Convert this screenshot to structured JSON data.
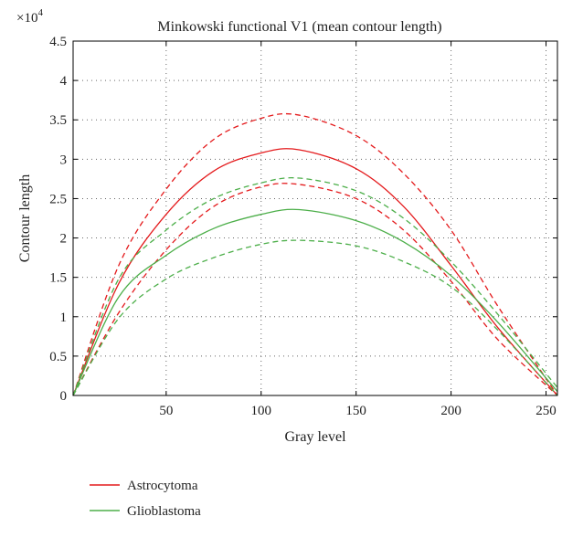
{
  "chart_data": {
    "type": "line",
    "title": "Minkowski functional V1 (mean contour length)",
    "xlabel": "Gray level",
    "ylabel": "Contour length",
    "y_multiplier": "×10",
    "y_multiplier_exp": "4",
    "xlim": [
      1,
      256
    ],
    "ylim": [
      0,
      4.5
    ],
    "x_ticks": [
      "50",
      "100",
      "150",
      "200",
      "250"
    ],
    "y_ticks": [
      "0",
      "0.5",
      "1",
      "1.5",
      "2",
      "2.5",
      "3",
      "3.5",
      "4",
      "4.5"
    ],
    "grid": true,
    "legend_position": "below",
    "x": [
      1,
      25,
      50,
      75,
      100,
      120,
      150,
      175,
      200,
      225,
      256
    ],
    "series": [
      {
        "name": "Astrocytoma",
        "style": "solid",
        "color": "#e41a1c",
        "values": [
          0,
          1.42,
          2.3,
          2.85,
          3.08,
          3.12,
          2.88,
          2.4,
          1.65,
          0.85,
          0
        ]
      },
      {
        "style": "dashed",
        "color": "#e41a1c",
        "values": [
          0,
          1.65,
          2.62,
          3.25,
          3.52,
          3.56,
          3.3,
          2.82,
          2.1,
          1.12,
          0
        ]
      },
      {
        "style": "dashed",
        "color": "#e41a1c",
        "values": [
          0,
          1.05,
          1.85,
          2.4,
          2.65,
          2.68,
          2.5,
          2.1,
          1.45,
          0.7,
          0
        ]
      },
      {
        "name": "Glioblastoma",
        "style": "solid",
        "color": "#4daf4a",
        "values": [
          0,
          1.25,
          1.78,
          2.12,
          2.3,
          2.36,
          2.22,
          1.95,
          1.52,
          0.92,
          0.05
        ]
      },
      {
        "style": "dashed",
        "color": "#4daf4a",
        "values": [
          0,
          1.48,
          2.1,
          2.5,
          2.7,
          2.76,
          2.6,
          2.25,
          1.7,
          1.02,
          0.1
        ]
      },
      {
        "style": "dashed",
        "color": "#4daf4a",
        "values": [
          0,
          0.98,
          1.48,
          1.75,
          1.92,
          1.97,
          1.9,
          1.7,
          1.38,
          0.82,
          0
        ]
      }
    ],
    "legend": [
      {
        "label": "Astrocytoma",
        "color": "#e41a1c"
      },
      {
        "label": "Glioblastoma",
        "color": "#4daf4a"
      }
    ]
  }
}
